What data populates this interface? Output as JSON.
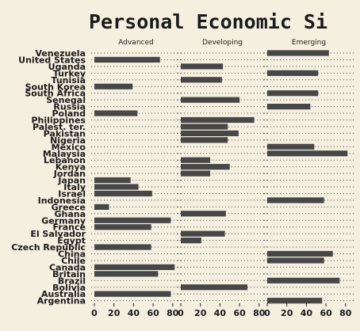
{
  "chart_data": {
    "type": "bar",
    "title": "Personal Economic Si",
    "facets": [
      "Advanced",
      "Developing",
      "Emerging"
    ],
    "countries": [
      "Venezuela",
      "United States",
      "Uganda",
      "Turkey",
      "Tunisia",
      "South Korea",
      "South Africa",
      "Senegal",
      "Russia",
      "Poland",
      "Philippines",
      "Palest. ter.",
      "Pakistan",
      "Nigeria",
      "Mexico",
      "Malaysia",
      "Lebanon",
      "Kenya",
      "Jordan",
      "Japan",
      "Italy",
      "Israel",
      "Indonesia",
      "Greece",
      "Ghana",
      "Germany",
      "France",
      "El Salvador",
      "Egypt",
      "Czech Republic",
      "China",
      "Chile",
      "Canada",
      "Britain",
      "Brazil",
      "Bolivia",
      "Australia",
      "Argentina"
    ],
    "group": {
      "Venezuela": "Emerging",
      "United States": "Advanced",
      "Uganda": "Developing",
      "Turkey": "Emerging",
      "Tunisia": "Developing",
      "South Korea": "Advanced",
      "South Africa": "Emerging",
      "Senegal": "Developing",
      "Russia": "Emerging",
      "Poland": "Advanced",
      "Philippines": "Developing",
      "Palest. ter.": "Developing",
      "Pakistan": "Developing",
      "Nigeria": "Developing",
      "Mexico": "Emerging",
      "Malaysia": "Emerging",
      "Lebanon": "Developing",
      "Kenya": "Developing",
      "Jordan": "Developing",
      "Japan": "Advanced",
      "Italy": "Advanced",
      "Israel": "Advanced",
      "Indonesia": "Emerging",
      "Greece": "Advanced",
      "Ghana": "Developing",
      "Germany": "Advanced",
      "France": "Advanced",
      "El Salvador": "Developing",
      "Egypt": "Developing",
      "Czech Republic": "Advanced",
      "China": "Emerging",
      "Chile": "Emerging",
      "Canada": "Advanced",
      "Britain": "Advanced",
      "Brazil": "Emerging",
      "Bolivia": "Developing",
      "Australia": "Advanced",
      "Argentina": "Emerging"
    },
    "values": {
      "Venezuela": 63,
      "United States": 67,
      "Uganda": 43,
      "Turkey": 52,
      "Tunisia": 42,
      "South Korea": 39,
      "South Africa": 52,
      "Senegal": 60,
      "Russia": 44,
      "Poland": 44,
      "Philippines": 75,
      "Palest. ter.": 48,
      "Pakistan": 59,
      "Nigeria": 48,
      "Mexico": 48,
      "Malaysia": 82,
      "Lebanon": 30,
      "Kenya": 50,
      "Jordan": 30,
      "Japan": 37,
      "Italy": 45,
      "Israel": 59,
      "Indonesia": 58,
      "Greece": 15,
      "Ghana": 46,
      "Germany": 78,
      "France": 58,
      "El Salvador": 45,
      "Egypt": 21,
      "Czech Republic": 58,
      "China": 67,
      "Chile": 58,
      "Canada": 82,
      "Britain": 65,
      "Brazil": 74,
      "Bolivia": 68,
      "Australia": 78,
      "Argentina": 56
    },
    "xlim": [
      0,
      85
    ],
    "xticks": [
      0,
      20,
      40,
      60,
      80
    ],
    "xtick_labels": [
      "0",
      "20",
      "40",
      "60",
      "80"
    ],
    "bar_color": "#474747",
    "background": "#f5efe0",
    "grid": "dotted horizontal"
  }
}
